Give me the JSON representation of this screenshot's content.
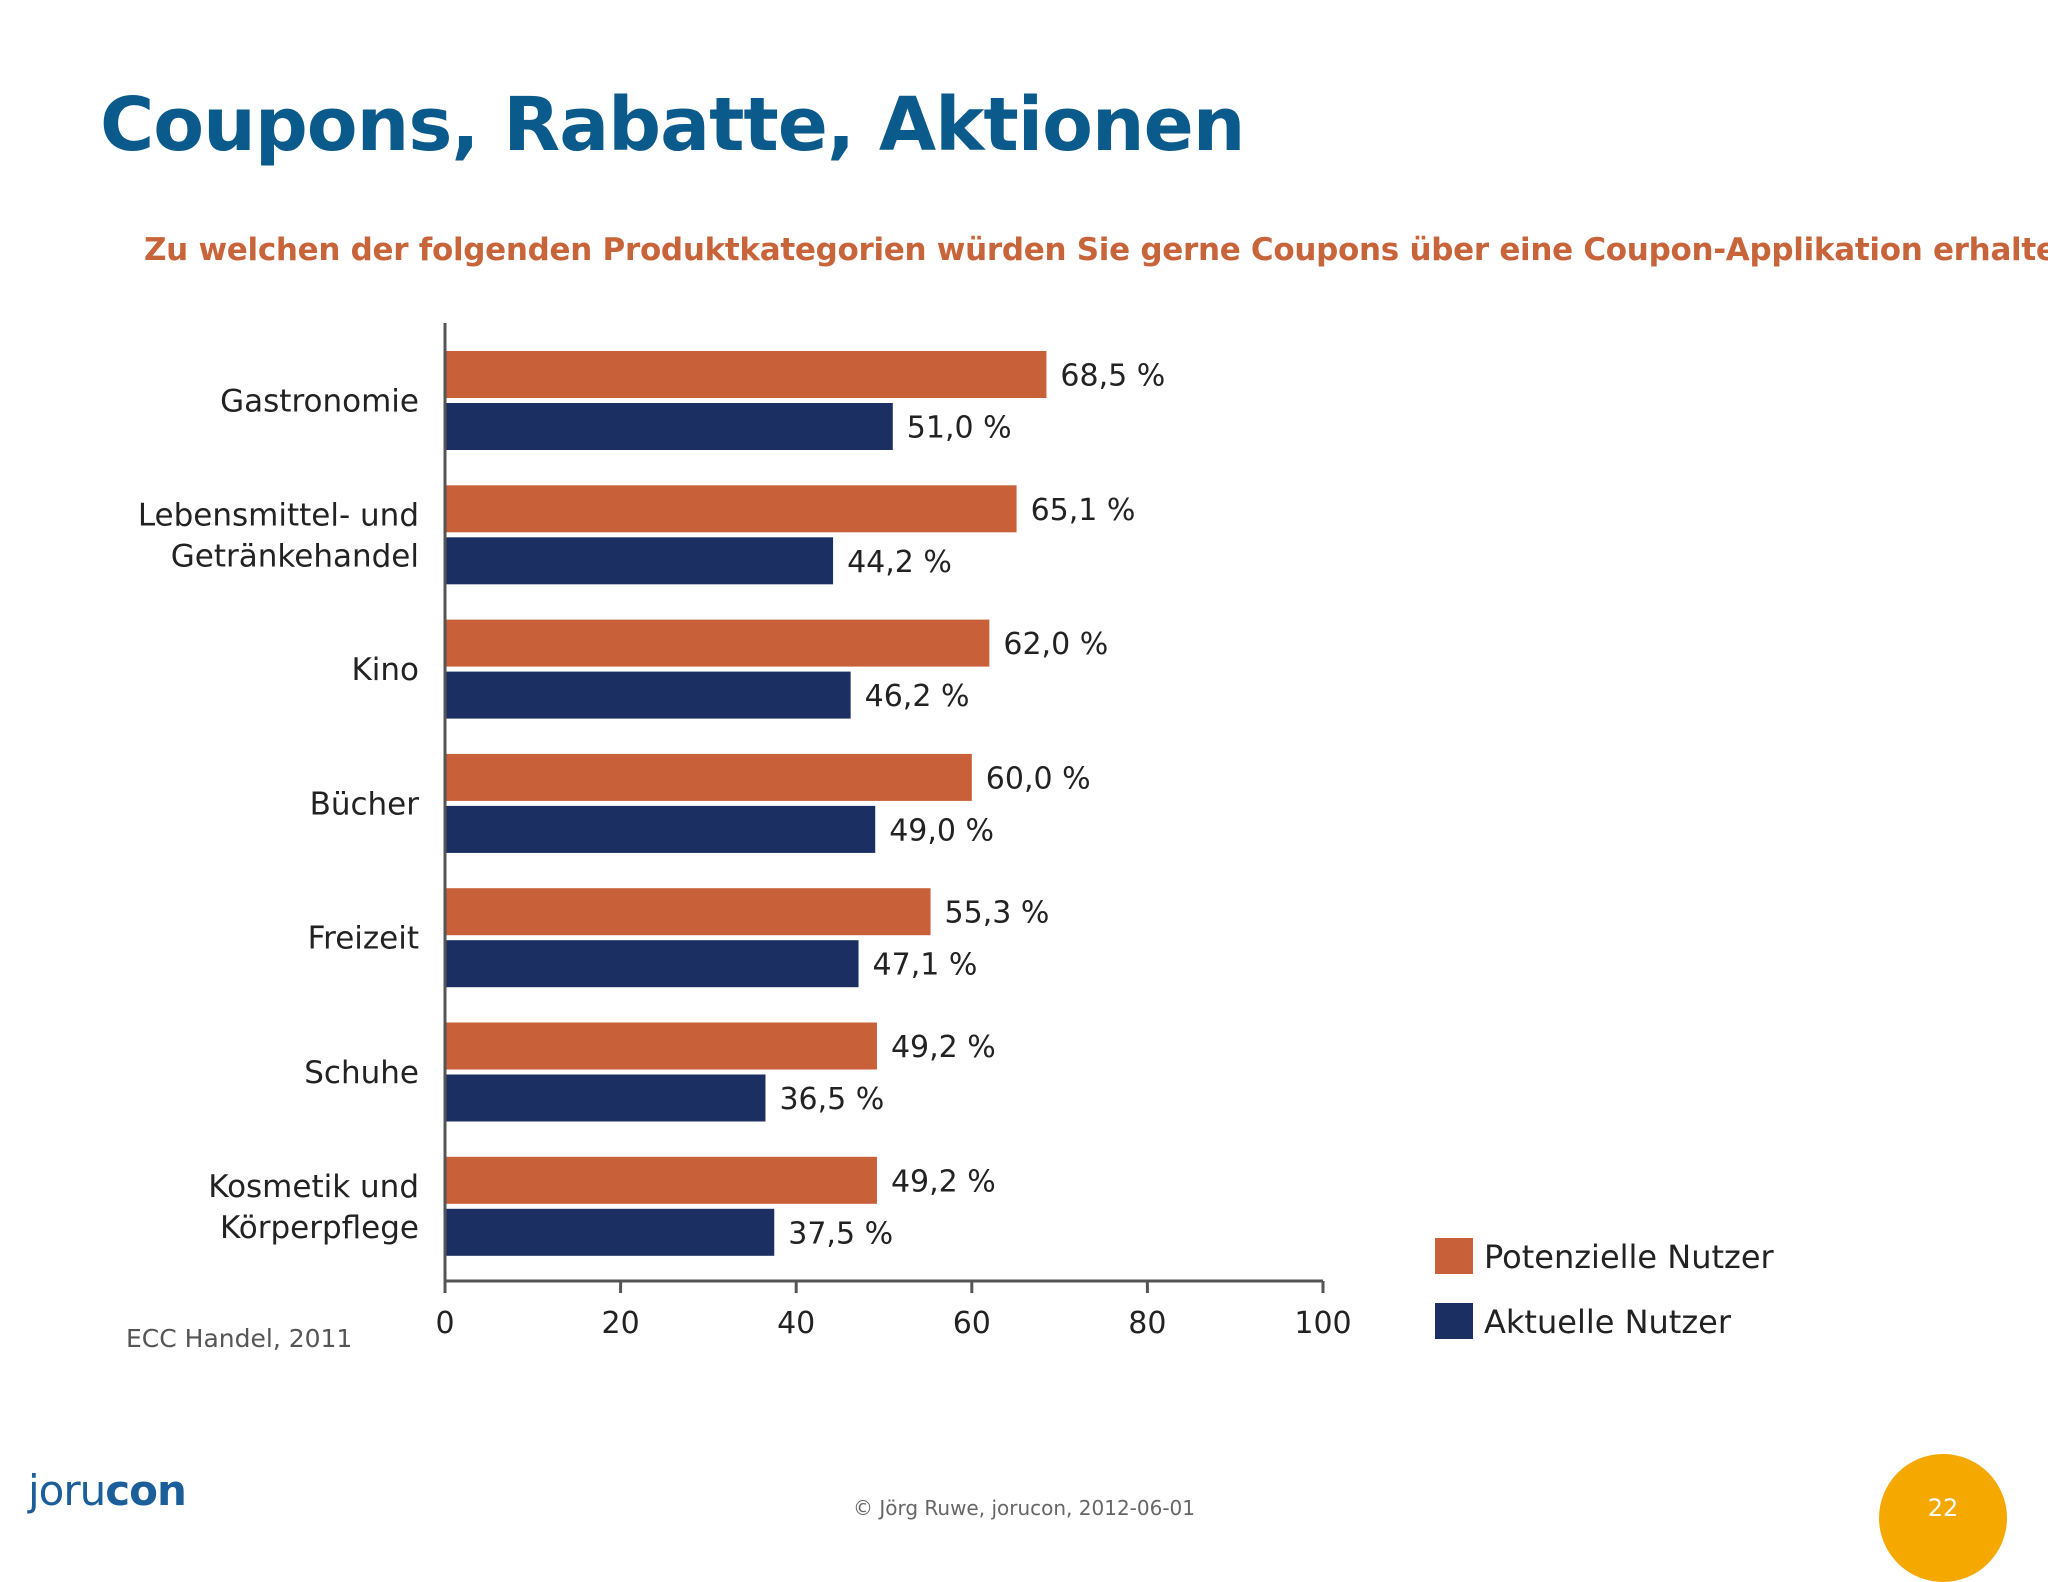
{
  "slide": {
    "title": "Coupons, Rabatte, Aktionen",
    "question": "Zu welchen der folgenden Produktkategorien würden Sie gerne Coupons über eine Coupon-Applikation erhalten?",
    "source": "ECC Handel, 2011",
    "logo_light": "joru",
    "logo_bold": "con",
    "copyright": "© Jörg Ruwe, jorucon, 2012-06-01",
    "page_number": "22"
  },
  "colors": {
    "title": "#0a5a8c",
    "question": "#c8643a",
    "potential": "#c8613a",
    "current": "#1b2f63",
    "badge": "#f5a800"
  },
  "chart_data": {
    "type": "bar",
    "orientation": "horizontal",
    "categories": [
      [
        "Gastronomie"
      ],
      [
        "Lebensmittel- und",
        "Getränkehandel"
      ],
      [
        "Kino"
      ],
      [
        "Bücher"
      ],
      [
        "Freizeit"
      ],
      [
        "Schuhe"
      ],
      [
        "Kosmetik und",
        "Körperpflege"
      ]
    ],
    "series": [
      {
        "name": "Potenzielle Nutzer",
        "color": "#c8613a",
        "values": [
          68.5,
          65.1,
          62.0,
          60.0,
          55.3,
          49.2,
          49.2
        ],
        "labels": [
          "68,5 %",
          "65,1 %",
          "62,0 %",
          "60,0 %",
          "55,3 %",
          "49,2 %",
          "49,2 %"
        ]
      },
      {
        "name": "Aktuelle Nutzer",
        "color": "#1b2f63",
        "values": [
          51.0,
          44.2,
          46.2,
          49.0,
          47.1,
          36.5,
          37.5
        ],
        "labels": [
          "51,0 %",
          "44,2 %",
          "46,2 %",
          "49,0 %",
          "47,1 %",
          "36,5 %",
          "37,5 %"
        ]
      }
    ],
    "xlim": [
      0,
      100
    ],
    "xticks": [
      "0",
      "20",
      "40",
      "60",
      "80",
      "100"
    ],
    "legend": "bottom-right",
    "grid": false
  }
}
